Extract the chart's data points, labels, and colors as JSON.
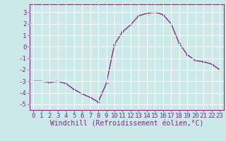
{
  "x": [
    0,
    1,
    2,
    3,
    4,
    5,
    6,
    7,
    8,
    9,
    10,
    11,
    12,
    13,
    14,
    15,
    16,
    17,
    18,
    19,
    20,
    21,
    22,
    23
  ],
  "y": [
    -3.0,
    -3.0,
    -3.1,
    -3.0,
    -3.2,
    -3.7,
    -4.1,
    -4.4,
    -4.8,
    -3.2,
    0.2,
    1.3,
    1.9,
    2.7,
    2.9,
    3.0,
    2.8,
    2.0,
    0.3,
    -0.7,
    -1.2,
    -1.3,
    -1.5,
    -2.0
  ],
  "line_color": "#7b2d8b",
  "marker": "+",
  "xlabel": "Windchill (Refroidissement éolien,°C)",
  "xlim": [
    -0.5,
    23.5
  ],
  "ylim": [
    -5.5,
    3.7
  ],
  "yticks": [
    -5,
    -4,
    -3,
    -2,
    -1,
    0,
    1,
    2,
    3
  ],
  "xticks": [
    0,
    1,
    2,
    3,
    4,
    5,
    6,
    7,
    8,
    9,
    10,
    11,
    12,
    13,
    14,
    15,
    16,
    17,
    18,
    19,
    20,
    21,
    22,
    23
  ],
  "bg_color": "#cce8e8",
  "grid_color": "#ffffff",
  "tick_color": "#7b2d8b",
  "label_color": "#7b2d8b",
  "xlabel_fontsize": 7.0,
  "tick_fontsize": 6.5,
  "linewidth": 1.0,
  "markersize": 3.5
}
